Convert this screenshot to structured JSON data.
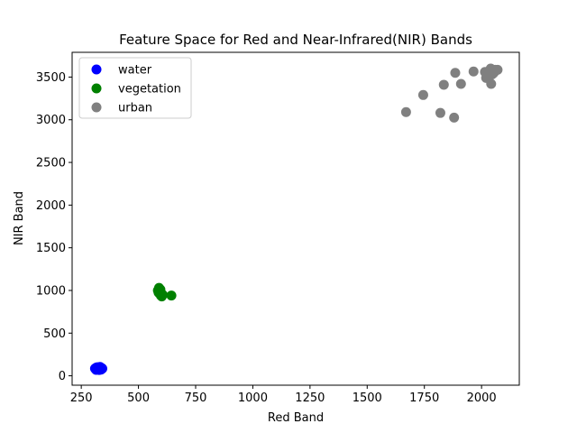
{
  "chart_data": {
    "type": "scatter",
    "title": "Feature Space for Red and Near-Infrared(NIR) Bands",
    "xlabel": "Red Band",
    "ylabel": "NIR Band",
    "xlim": [
      210,
      2165
    ],
    "ylim": [
      -110,
      3790
    ],
    "xticks": [
      250,
      500,
      750,
      1000,
      1250,
      1500,
      1750,
      2000
    ],
    "yticks": [
      0,
      500,
      1000,
      1500,
      2000,
      2500,
      3000,
      3500
    ],
    "grid": false,
    "legend_position": "top-left",
    "series": [
      {
        "name": "water",
        "color": "#0000ff",
        "points": [
          [
            312,
            80
          ],
          [
            318,
            92
          ],
          [
            322,
            75
          ],
          [
            326,
            88
          ],
          [
            330,
            82
          ],
          [
            334,
            95
          ],
          [
            338,
            78
          ],
          [
            315,
            70
          ],
          [
            320,
            100
          ],
          [
            328,
            68
          ],
          [
            332,
            104
          ],
          [
            336,
            72
          ],
          [
            340,
            90
          ],
          [
            324,
            85
          ],
          [
            316,
            96
          ],
          [
            342,
            84
          ],
          [
            310,
            86
          ],
          [
            327,
            77
          ]
        ]
      },
      {
        "name": "vegetation",
        "color": "#008000",
        "points": [
          [
            585,
            1000
          ],
          [
            590,
            1030
          ],
          [
            594,
            960
          ],
          [
            588,
            975
          ],
          [
            598,
            940
          ],
          [
            602,
            930
          ],
          [
            606,
            950
          ],
          [
            596,
            1010
          ],
          [
            592,
            985
          ],
          [
            644,
            940
          ]
        ]
      },
      {
        "name": "urban",
        "color": "#808080",
        "points": [
          [
            1670,
            3090
          ],
          [
            1745,
            3290
          ],
          [
            1820,
            3080
          ],
          [
            1835,
            3410
          ],
          [
            1880,
            3025
          ],
          [
            1885,
            3550
          ],
          [
            1910,
            3420
          ],
          [
            1965,
            3565
          ],
          [
            2015,
            3560
          ],
          [
            2020,
            3490
          ],
          [
            2025,
            3540
          ],
          [
            2035,
            3575
          ],
          [
            2040,
            3600
          ],
          [
            2042,
            3420
          ],
          [
            2050,
            3540
          ],
          [
            2055,
            3555
          ],
          [
            2060,
            3585
          ],
          [
            2070,
            3585
          ],
          [
            2045,
            3530
          ]
        ]
      }
    ]
  }
}
